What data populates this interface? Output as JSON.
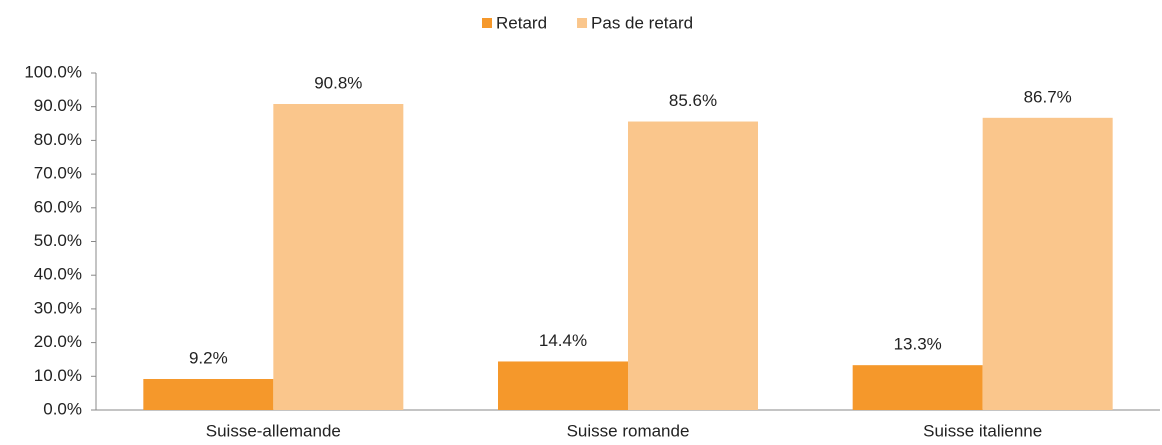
{
  "chart_data": {
    "type": "bar",
    "categories": [
      "Suisse-allemande",
      "Suisse romande",
      "Suisse italienne"
    ],
    "series": [
      {
        "name": "Retard",
        "color": "#f5982b",
        "values": [
          9.2,
          14.4,
          13.3
        ],
        "value_labels": [
          "9.2%",
          "14.4%",
          "13.3%"
        ]
      },
      {
        "name": "Pas de retard",
        "color": "#fac68c",
        "values": [
          90.8,
          85.6,
          86.7
        ],
        "value_labels": [
          "90.8%",
          "85.6%",
          "86.7%"
        ]
      }
    ],
    "ylim": [
      0,
      100
    ],
    "yticks": [
      {
        "value": 0,
        "label": "0.0%"
      },
      {
        "value": 10,
        "label": "10.0%"
      },
      {
        "value": 20,
        "label": "20.0%"
      },
      {
        "value": 30,
        "label": "30.0%"
      },
      {
        "value": 40,
        "label": "40.0%"
      },
      {
        "value": 50,
        "label": "50.0%"
      },
      {
        "value": 60,
        "label": "60.0%"
      },
      {
        "value": 70,
        "label": "70.0%"
      },
      {
        "value": 80,
        "label": "80.0%"
      },
      {
        "value": 90,
        "label": "90.0%"
      },
      {
        "value": 100,
        "label": "100.0%"
      }
    ],
    "grid": false,
    "legend": "top"
  }
}
